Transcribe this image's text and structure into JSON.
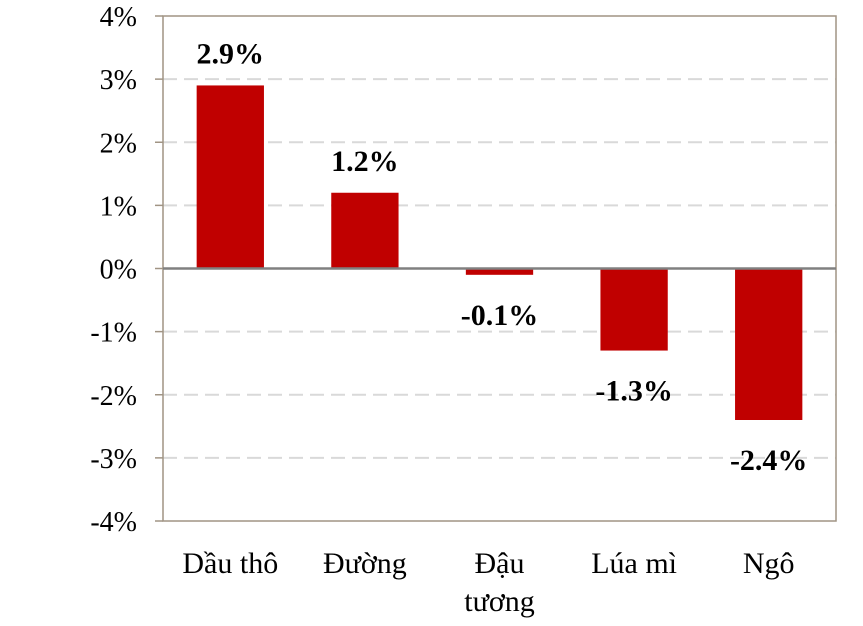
{
  "chart_data": {
    "type": "bar",
    "categories": [
      [
        "Dầu thô"
      ],
      [
        "Đường"
      ],
      [
        "Đậu",
        "tương"
      ],
      [
        "Lúa mì"
      ],
      [
        "Ngô"
      ]
    ],
    "values": [
      2.9,
      1.2,
      -0.1,
      -1.3,
      -2.4
    ],
    "data_labels": [
      "2.9%",
      "1.2%",
      "-0.1%",
      "-1.3%",
      "-2.4%"
    ],
    "y_ticks": [
      4,
      3,
      2,
      1,
      0,
      -1,
      -2,
      -3,
      -4
    ],
    "y_tick_labels": [
      "4%",
      "3%",
      "2%",
      "1%",
      "0%",
      "-1%",
      "-2%",
      "-3%",
      "-4%"
    ],
    "ylim": [
      -4,
      4
    ],
    "grid": true,
    "legend": "none",
    "bar_color": "#c00000",
    "title": "",
    "xlabel": "",
    "ylabel": ""
  }
}
